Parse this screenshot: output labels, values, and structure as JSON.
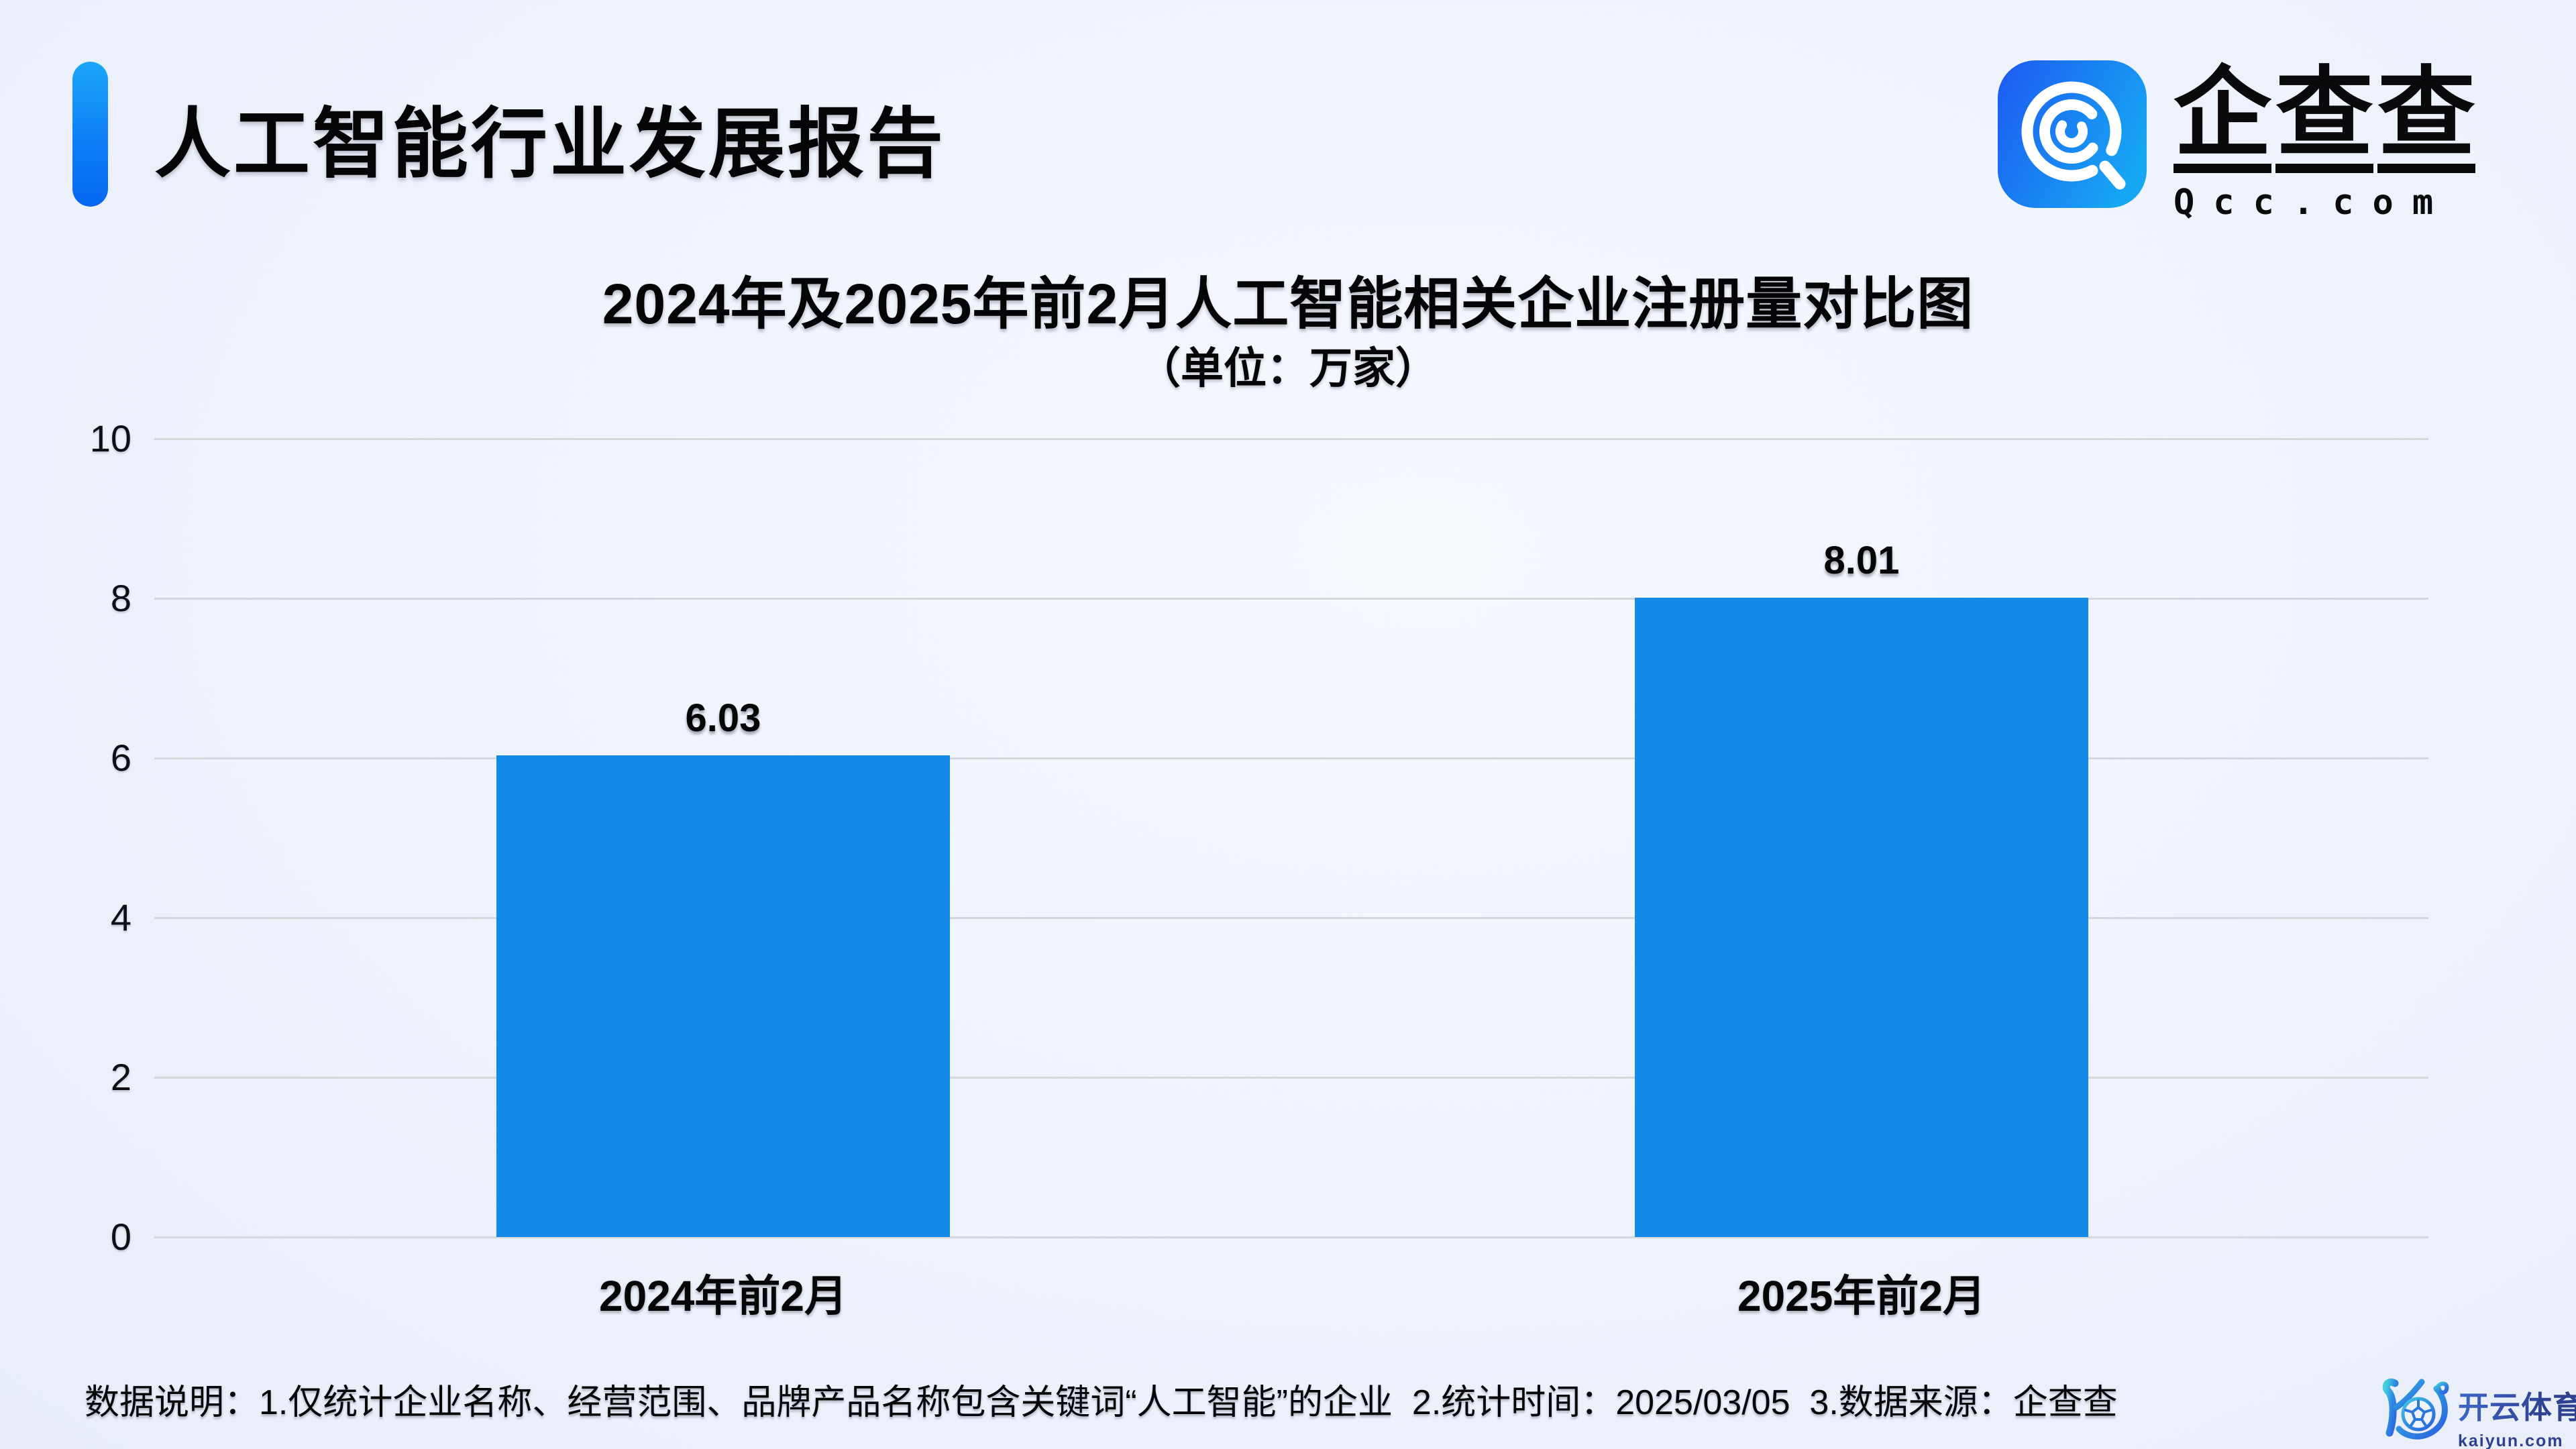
{
  "header": {
    "title": "人工智能行业发展报告"
  },
  "logo": {
    "chars": [
      "企",
      "查",
      "查"
    ],
    "domain": "Qcc.com"
  },
  "chart_data": {
    "type": "bar",
    "title": "2024年及2025年前2月人工智能相关企业注册量对比图",
    "unit_label": "（单位：万家）",
    "categories": [
      "2024年前2月",
      "2025年前2月"
    ],
    "values": [
      6.03,
      8.01
    ],
    "value_labels": [
      "6.03",
      "8.01"
    ],
    "ylim": [
      0,
      10
    ],
    "yticks": [
      10,
      8,
      6,
      4,
      2,
      0
    ],
    "grid": true,
    "legend": false,
    "bar_color": "#148be9",
    "gridline_color": "#d6d7da"
  },
  "footer": {
    "note": "数据说明：1.仅统计企业名称、经营范围、品牌产品名称包含关键词“人工智能”的企业  2.统计时间：2025/03/05  3.数据来源：企查查"
  },
  "watermark": {
    "brand": "开云体育",
    "domain": "kaiyun.com"
  }
}
